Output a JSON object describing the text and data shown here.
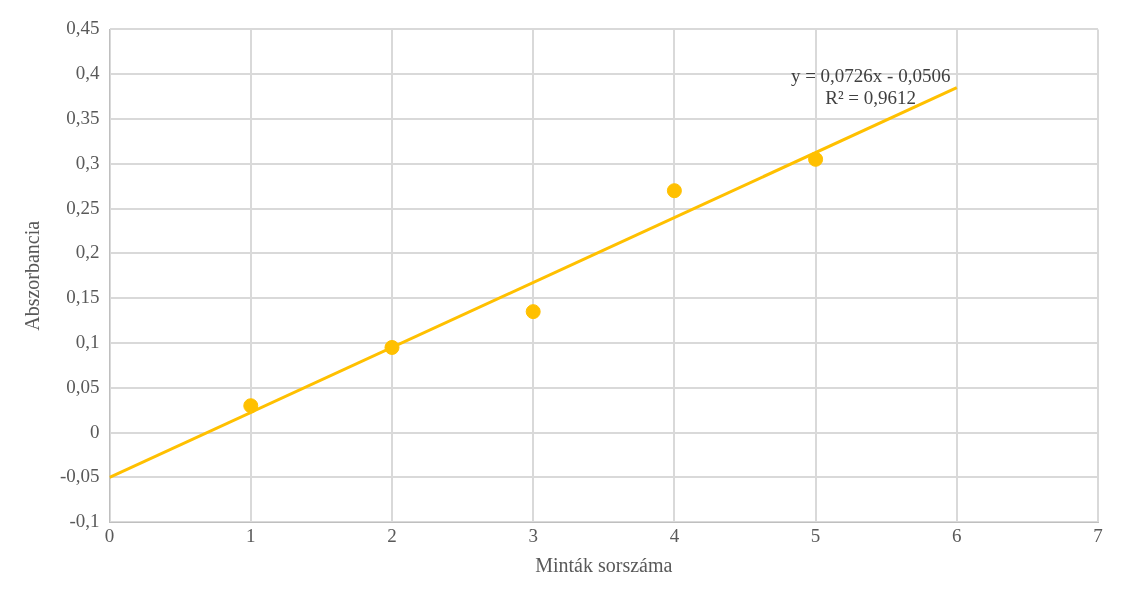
{
  "chart_data": {
    "type": "scatter",
    "xlabel": "Minták sorszáma",
    "ylabel": "Abszorbancia",
    "series": [
      {
        "color": "#ffc000",
        "x": [
          1,
          2,
          3,
          4,
          5
        ],
        "values": [
          0.03,
          0.095,
          0.135,
          0.27,
          0.305
        ],
        "marker": "circle"
      },
      {
        "type": "line",
        "color": "#ffc000",
        "x": [
          0,
          6
        ],
        "values": [
          -0.05,
          0.385
        ],
        "marker": "none",
        "line_style": "solid"
      }
    ],
    "xlim": [
      0,
      7
    ],
    "xticks": [
      0,
      1,
      2,
      3,
      4,
      5,
      6,
      7
    ],
    "ylim": [
      -0.1,
      0.45
    ],
    "yticks": [
      {
        "value": -0.1,
        "label": "-0,1"
      },
      {
        "value": -0.05,
        "label": "-0,05"
      },
      {
        "value": 0,
        "label": "0"
      },
      {
        "value": 0.05,
        "label": "0,05"
      },
      {
        "value": 0.1,
        "label": "0,1"
      },
      {
        "value": 0.15,
        "label": "0,15"
      },
      {
        "value": 0.2,
        "label": "0,2"
      },
      {
        "value": 0.25,
        "label": "0,25"
      },
      {
        "value": 0.3,
        "label": "0,3"
      },
      {
        "value": 0.35,
        "label": "0,35"
      },
      {
        "value": 0.4,
        "label": "0,4"
      },
      {
        "value": 0.45,
        "label": "0,45"
      }
    ],
    "annotations": [
      "y = 0,0726x - 0,0506",
      "R² = 0,9612"
    ],
    "grid": true,
    "legend": false
  }
}
